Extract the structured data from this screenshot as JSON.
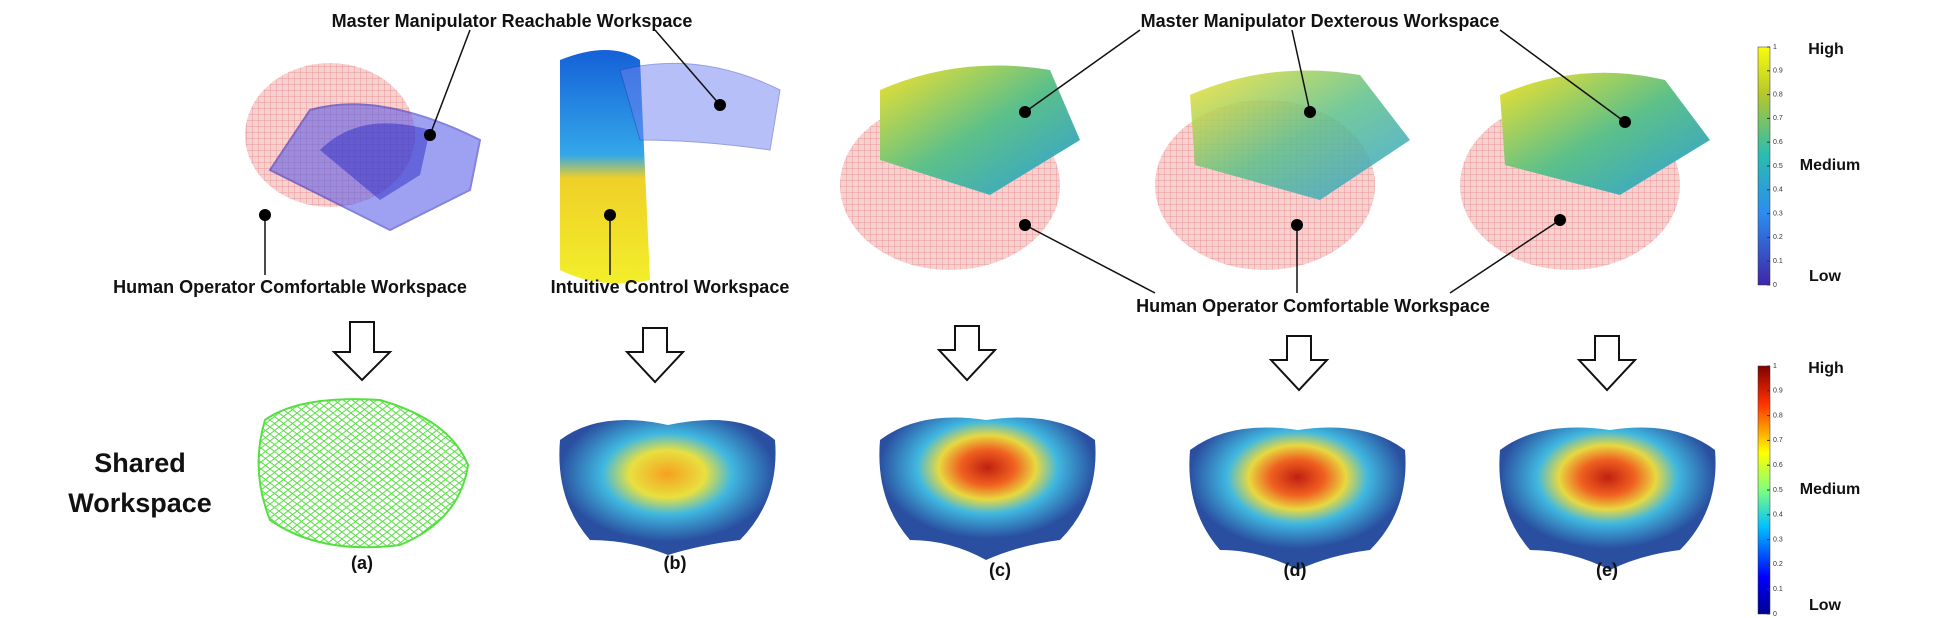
{
  "top_labels": {
    "reachable": "Master Manipulator Reachable Workspace",
    "dexterous": "Master Manipulator Dexterous Workspace",
    "comfortable_a": "Human Operator Comfortable Workspace",
    "intuitive": "Intuitive Control Workspace",
    "comfortable_cde": "Human Operator Comfortable Workspace"
  },
  "row_label": [
    "Shared",
    "Workspace"
  ],
  "panels": [
    "(a)",
    "(b)",
    "(c)",
    "(d)",
    "(e)"
  ],
  "colorbars": [
    {
      "ticks": [
        0,
        0.1,
        0.2,
        0.3,
        0.4,
        0.5,
        0.6,
        0.7,
        0.8,
        0.9,
        1
      ],
      "high": "High",
      "medium": "Medium",
      "low": "Low"
    },
    {
      "ticks": [
        0,
        0.1,
        0.2,
        0.3,
        0.4,
        0.5,
        0.6,
        0.7,
        0.8,
        0.9,
        1
      ],
      "high": "High",
      "medium": "Medium",
      "low": "Low"
    }
  ]
}
